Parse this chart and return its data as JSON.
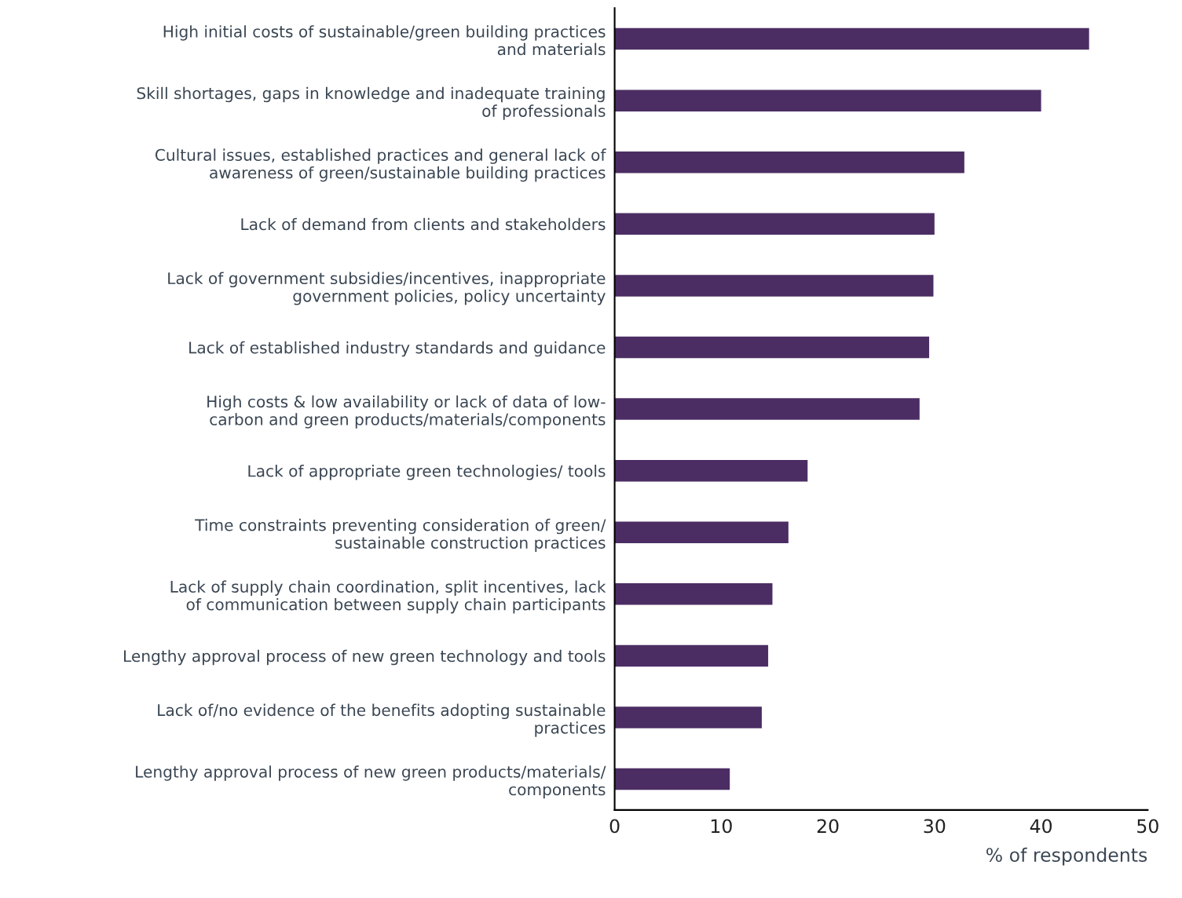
{
  "chart_data": {
    "type": "bar",
    "orientation": "horizontal",
    "xlabel": "% of respondents",
    "categories": [
      "High initial costs of sustainable/green building practices\nand materials",
      "Skill shortages, gaps in knowledge and inadequate training\nof professionals",
      "Cultural issues, established practices and general lack of\nawareness of green/sustainable building practices",
      "Lack of demand from clients and stakeholders",
      "Lack of government subsidies/incentives, inappropriate\ngovernment policies, policy uncertainty",
      "Lack of established industry standards and guidance",
      "High costs & low availability or lack of data of low-\ncarbon and green products/materials/components",
      "Lack of appropriate green technologies/ tools",
      "Time constraints preventing consideration of green/\nsustainable construction practices",
      "Lack of supply chain coordination, split incentives, lack\nof communication between supply chain participants",
      "Lengthy approval process of new green technology and tools",
      "Lack of/no evidence of the benefits adopting sustainable\npractices",
      "Lengthy approval process of new green products/materials/\ncomponents"
    ],
    "values": [
      44.5,
      40.0,
      32.8,
      30.0,
      29.9,
      29.5,
      28.6,
      18.1,
      16.3,
      14.8,
      14.4,
      13.8,
      10.8
    ],
    "color": "#4b2d63",
    "xlim": [
      0,
      50
    ],
    "xticks": [
      0,
      10,
      20,
      30,
      40,
      50
    ],
    "grid": false,
    "legend": false
  }
}
